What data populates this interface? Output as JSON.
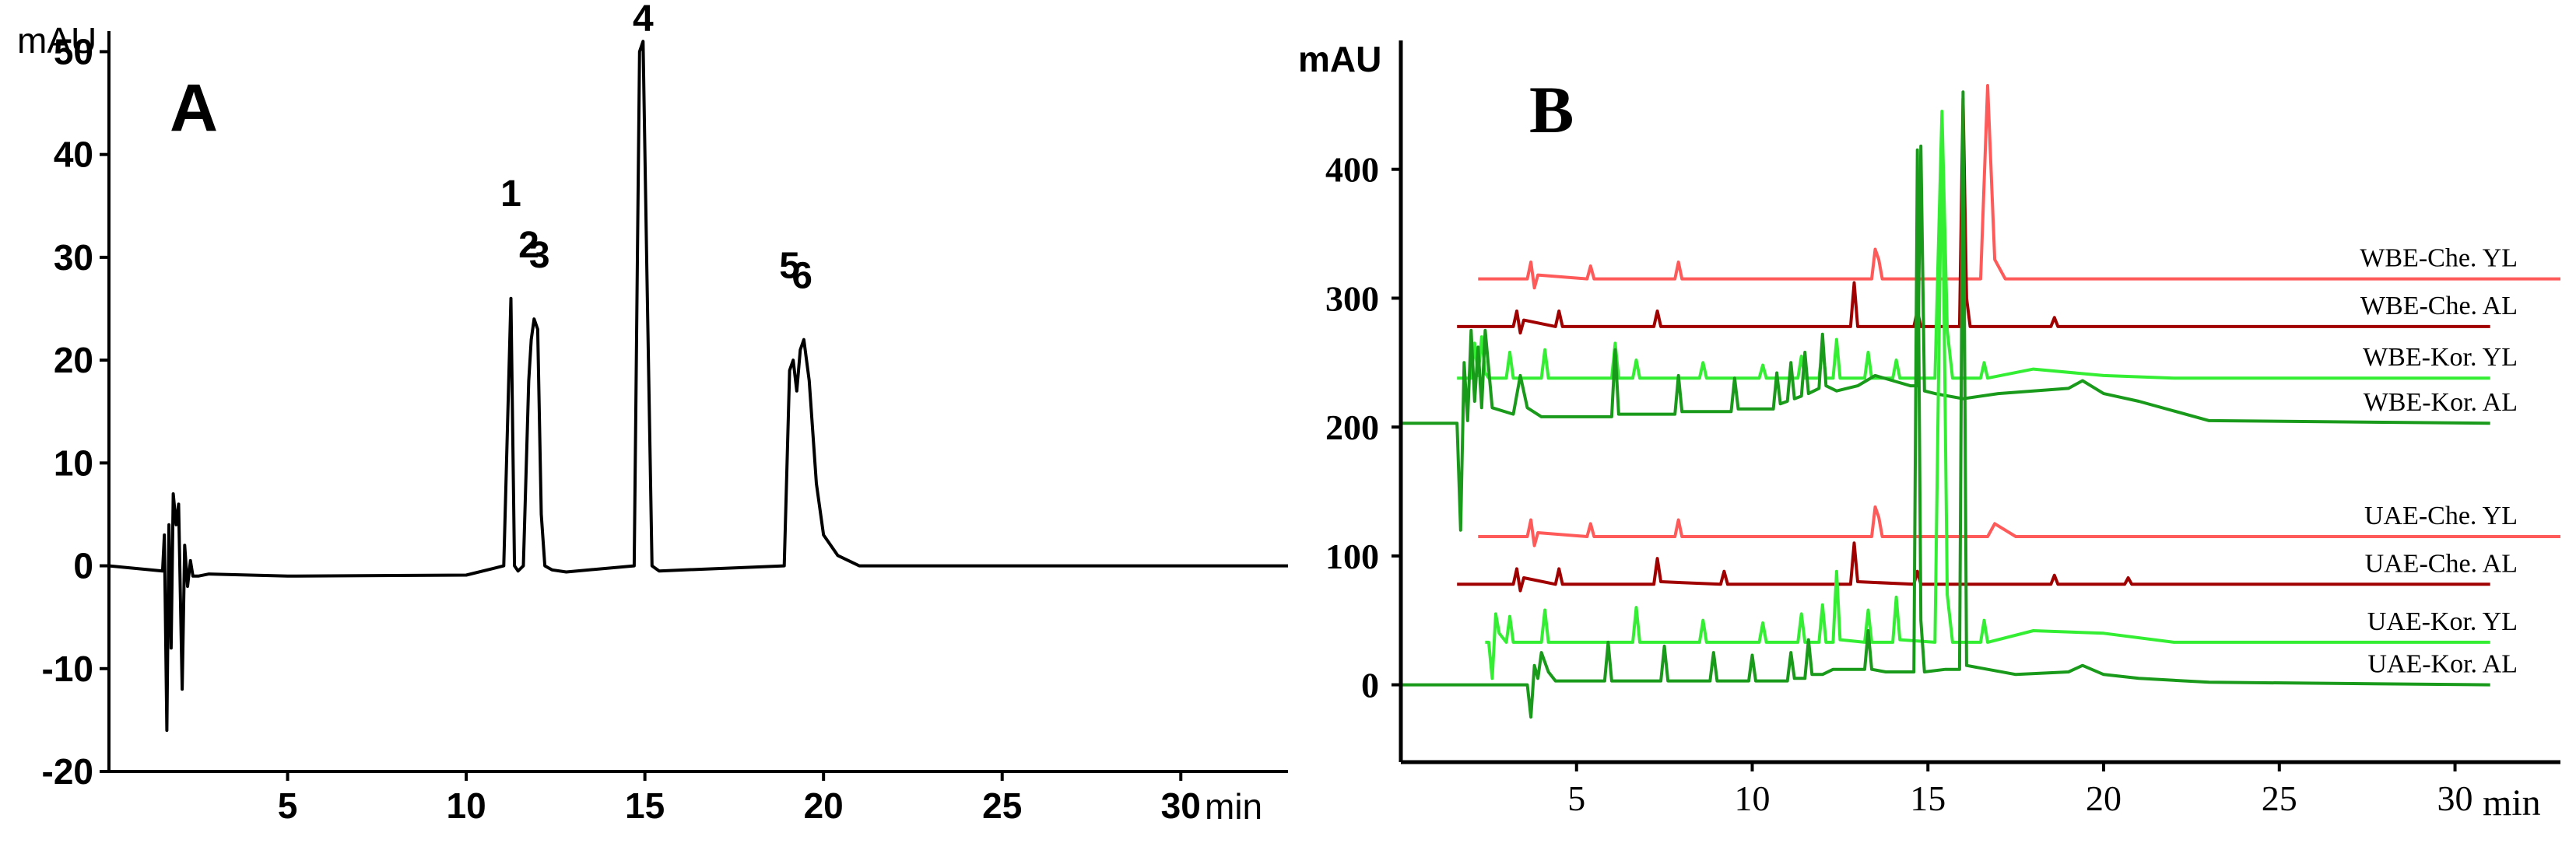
{
  "colors": {
    "panelA_line": "#000000",
    "che_yl": "#ff5a5a",
    "che_al": "#a00000",
    "kor_yl": "#33ee33",
    "kor_al": "#1a9a1a"
  },
  "chart_data": [
    {
      "type": "line",
      "panel_label": "A",
      "ylabel": "mAU",
      "xlabel": "min",
      "xlim": [
        0,
        33
      ],
      "ylim": [
        -20,
        52
      ],
      "x_ticks": [
        "5",
        "10",
        "15",
        "20",
        "25",
        "30"
      ],
      "y_ticks": [
        "50",
        "40",
        "30",
        "20",
        "10",
        "0",
        "-10",
        "-20"
      ],
      "series": [
        {
          "name": "standard mixture",
          "x": [
            0,
            1.5,
            1.55,
            1.62,
            1.68,
            1.74,
            1.8,
            1.88,
            1.95,
            2.05,
            2.12,
            2.2,
            2.28,
            2.35,
            2.5,
            2.8,
            5,
            10,
            11.05,
            11.25,
            11.35,
            11.45,
            11.6,
            11.75,
            11.82,
            11.9,
            12.0,
            12.1,
            12.2,
            12.4,
            12.8,
            14.7,
            14.85,
            14.95,
            15.05,
            15.2,
            15.4,
            18.9,
            19.05,
            19.15,
            19.25,
            19.35,
            19.45,
            19.6,
            19.8,
            20.0,
            20.4,
            21.0,
            24,
            30,
            31,
            33
          ],
          "y": [
            0,
            -0.5,
            3,
            -16,
            4,
            -8,
            7,
            4,
            6,
            -12,
            2,
            -2,
            0.5,
            -1,
            -1,
            -0.8,
            -1,
            -0.9,
            0,
            26,
            0,
            -0.5,
            0,
            18,
            22,
            24,
            23,
            5,
            0,
            -0.4,
            -0.6,
            0,
            50,
            51,
            30,
            0,
            -0.5,
            0,
            19,
            20,
            17,
            21,
            22,
            18,
            8,
            3,
            1,
            0,
            0,
            0,
            0,
            0
          ]
        }
      ],
      "annotations": [
        {
          "label": "1",
          "x": 11.25,
          "y": 35
        },
        {
          "label": "2",
          "x": 11.75,
          "y": 30
        },
        {
          "label": "3",
          "x": 12.05,
          "y": 29
        },
        {
          "label": "4",
          "x": 14.95,
          "y": 52
        },
        {
          "label": "5",
          "x": 19.05,
          "y": 28
        },
        {
          "label": "6",
          "x": 19.4,
          "y": 27
        }
      ]
    },
    {
      "type": "line",
      "panel_label": "B",
      "ylabel": "mAU",
      "xlabel": "min",
      "xlim": [
        0,
        33
      ],
      "ylim": [
        -60,
        500
      ],
      "x_ticks": [
        "5",
        "10",
        "15",
        "20",
        "25",
        "30"
      ],
      "y_ticks": [
        "400",
        "300",
        "200",
        "100",
        "0"
      ],
      "series": [
        {
          "name": "WBE-Che. YL",
          "color_key": "che_yl",
          "x": [
            2.2,
            3.6,
            3.7,
            3.8,
            3.9,
            5.3,
            5.4,
            5.5,
            7.8,
            7.9,
            8.0,
            13.4,
            13.5,
            13.6,
            13.7,
            16.5,
            16.7,
            16.9,
            17.2,
            17.5,
            33
          ],
          "y": [
            315,
            315,
            328,
            308,
            318,
            315,
            325,
            315,
            315,
            328,
            315,
            315,
            338,
            330,
            315,
            315,
            465,
            330,
            315,
            315,
            315
          ]
        },
        {
          "name": "WBE-Che. AL",
          "color_key": "che_al",
          "x": [
            1.6,
            3.2,
            3.3,
            3.4,
            3.5,
            4.4,
            4.5,
            4.6,
            7.2,
            7.3,
            7.4,
            12.8,
            12.9,
            13.0,
            14.6,
            14.7,
            14.8,
            15.9,
            16.0,
            16.1,
            16.2,
            18.5,
            18.6,
            18.7,
            31
          ],
          "y": [
            278,
            278,
            290,
            273,
            283,
            278,
            290,
            278,
            278,
            290,
            278,
            278,
            312,
            278,
            278,
            290,
            278,
            278,
            455,
            300,
            278,
            278,
            285,
            278,
            278
          ]
        },
        {
          "name": "WBE-Kor. YL",
          "color_key": "kor_yl",
          "x": [
            1.6,
            2.0,
            2.1,
            2.2,
            2.3,
            2.4,
            2.5,
            3.0,
            3.1,
            3.2,
            4.0,
            4.1,
            4.2,
            6.0,
            6.1,
            6.2,
            6.6,
            6.7,
            6.8,
            8.5,
            8.6,
            8.7,
            10.2,
            10.3,
            10.4,
            11.3,
            11.4,
            11.5,
            11.9,
            12.0,
            12.1,
            12.3,
            12.4,
            12.5,
            13.2,
            13.3,
            13.4,
            14.0,
            14.1,
            14.2,
            15.2,
            15.4,
            15.55,
            15.7,
            16.5,
            16.6,
            16.7,
            18.0,
            20.0,
            22.0,
            31
          ],
          "y": [
            238,
            238,
            265,
            240,
            270,
            242,
            238,
            238,
            258,
            238,
            238,
            260,
            238,
            238,
            265,
            238,
            238,
            252,
            238,
            238,
            250,
            238,
            238,
            248,
            238,
            238,
            255,
            238,
            238,
            262,
            238,
            238,
            268,
            238,
            238,
            258,
            238,
            238,
            252,
            238,
            238,
            445,
            275,
            238,
            238,
            250,
            238,
            245,
            240,
            238,
            238
          ]
        },
        {
          "name": "WBE-Kor. AL",
          "color_key": "kor_al",
          "x": [
            0,
            1.6,
            1.7,
            1.8,
            1.9,
            2.0,
            2.1,
            2.2,
            2.3,
            2.4,
            2.6,
            3.2,
            3.4,
            3.6,
            4.0,
            6.0,
            6.1,
            6.2,
            7.8,
            7.9,
            8.0,
            9.4,
            9.5,
            9.6,
            10.6,
            10.7,
            10.8,
            11.0,
            11.1,
            11.2,
            11.4,
            11.5,
            11.6,
            11.9,
            12.0,
            12.1,
            12.4,
            13.0,
            13.5,
            14.0,
            14.5,
            14.7,
            14.8,
            14.9,
            15.2,
            16.0,
            17.0,
            18.0,
            19.0,
            19.4,
            20.0,
            21.0,
            23.0,
            31
          ],
          "y": [
            203,
            203,
            120,
            250,
            205,
            275,
            220,
            262,
            215,
            275,
            215,
            210,
            240,
            215,
            208,
            208,
            260,
            210,
            210,
            240,
            212,
            212,
            238,
            214,
            214,
            242,
            218,
            220,
            250,
            222,
            224,
            258,
            226,
            230,
            272,
            232,
            228,
            232,
            240,
            236,
            232,
            232,
            418,
            228,
            226,
            222,
            226,
            228,
            230,
            236,
            226,
            220,
            205,
            203
          ]
        },
        {
          "name": "UAE-Che. YL",
          "color_key": "che_yl",
          "x": [
            2.2,
            3.6,
            3.7,
            3.8,
            3.9,
            5.3,
            5.4,
            5.5,
            7.8,
            7.9,
            8.0,
            13.4,
            13.5,
            13.6,
            13.7,
            16.7,
            16.9,
            17.5,
            33
          ],
          "y": [
            115,
            115,
            128,
            108,
            118,
            115,
            125,
            115,
            115,
            128,
            115,
            115,
            138,
            130,
            115,
            115,
            125,
            115,
            115
          ]
        },
        {
          "name": "UAE-Che. AL",
          "color_key": "che_al",
          "x": [
            1.6,
            3.2,
            3.3,
            3.4,
            3.5,
            4.4,
            4.5,
            4.6,
            7.2,
            7.3,
            7.4,
            9.1,
            9.2,
            9.3,
            12.8,
            12.9,
            13.0,
            14.6,
            14.7,
            14.8,
            18.5,
            18.6,
            18.7,
            20.6,
            20.7,
            20.8,
            31
          ],
          "y": [
            78,
            78,
            90,
            73,
            83,
            78,
            90,
            78,
            78,
            98,
            80,
            78,
            88,
            78,
            78,
            110,
            80,
            78,
            88,
            78,
            78,
            85,
            78,
            78,
            83,
            78,
            78
          ]
        },
        {
          "name": "UAE-Kor. YL",
          "color_key": "kor_yl",
          "x": [
            2.4,
            2.5,
            2.6,
            2.7,
            2.8,
            3.0,
            3.1,
            3.2,
            4.0,
            4.1,
            4.2,
            6.6,
            6.7,
            6.8,
            8.5,
            8.6,
            8.7,
            10.2,
            10.3,
            10.4,
            11.3,
            11.4,
            11.5,
            11.9,
            12.0,
            12.1,
            12.3,
            12.4,
            12.5,
            13.2,
            13.3,
            13.4,
            14.0,
            14.1,
            14.2,
            15.2,
            15.4,
            15.55,
            15.7,
            16.5,
            16.6,
            16.7,
            18.0,
            20.0,
            22.0,
            31
          ],
          "y": [
            33,
            33,
            5,
            55,
            40,
            33,
            53,
            33,
            33,
            58,
            33,
            33,
            60,
            33,
            33,
            50,
            33,
            33,
            48,
            33,
            33,
            55,
            33,
            33,
            62,
            33,
            33,
            88,
            35,
            33,
            58,
            33,
            33,
            68,
            35,
            33,
            435,
            70,
            33,
            33,
            50,
            33,
            42,
            40,
            33,
            33
          ]
        },
        {
          "name": "UAE-Kor. AL",
          "color_key": "kor_al",
          "x": [
            0,
            3.6,
            3.7,
            3.8,
            3.9,
            4.0,
            4.2,
            4.4,
            5.8,
            5.9,
            6.0,
            7.4,
            7.5,
            7.6,
            8.8,
            8.9,
            9.0,
            9.9,
            10.0,
            10.1,
            11.0,
            11.1,
            11.2,
            11.5,
            11.6,
            11.7,
            12.0,
            12.3,
            13.2,
            13.3,
            13.4,
            13.8,
            14.6,
            14.7,
            14.8,
            14.9,
            15.5,
            15.9,
            16.0,
            16.1,
            17.5,
            19.0,
            19.4,
            20.0,
            21.0,
            23.0,
            31
          ],
          "y": [
            0,
            0,
            -25,
            15,
            5,
            25,
            10,
            3,
            3,
            33,
            3,
            3,
            30,
            3,
            3,
            25,
            3,
            3,
            23,
            3,
            3,
            25,
            5,
            5,
            35,
            8,
            8,
            12,
            12,
            42,
            12,
            10,
            10,
            415,
            50,
            10,
            12,
            12,
            460,
            15,
            8,
            10,
            15,
            8,
            5,
            2,
            0
          ]
        }
      ]
    }
  ]
}
